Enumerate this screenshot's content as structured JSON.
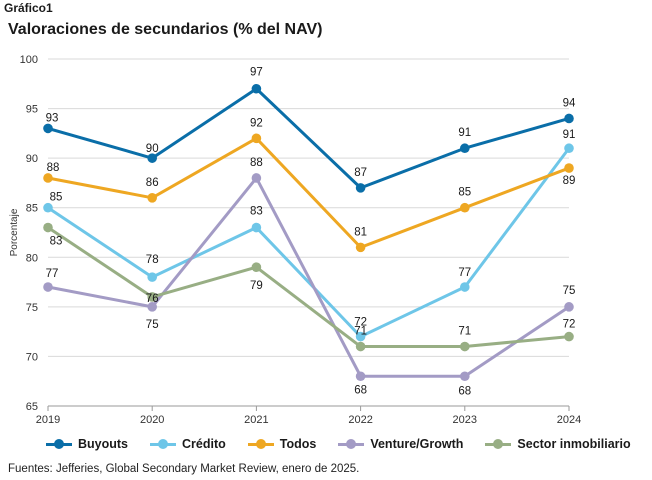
{
  "header": {
    "label": "Gráfico1",
    "title": "Valoraciones de secundarios (% del NAV)"
  },
  "source": "Fuentes: Jefferies, Global Secondary Market Review, enero de 2025.",
  "colors": {
    "buyouts": "#0a6ea8",
    "credito": "#6ec6e8",
    "todos": "#eea722",
    "venture": "#a39bc5",
    "inmobiliario": "#98ae84",
    "grid": "#d9d9d9",
    "axis": "#9a9a9a"
  },
  "chart_data": {
    "type": "line",
    "x": [
      "2019",
      "2020",
      "2021",
      "2022",
      "2023",
      "2024"
    ],
    "ylabel": "Porcentaje",
    "ylim": [
      65,
      100
    ],
    "yticks": [
      65,
      70,
      75,
      80,
      85,
      90,
      95,
      100
    ],
    "grid": true,
    "legend": "bottom",
    "series": [
      {
        "name": "Buyouts",
        "key": "buyouts",
        "values": [
          93,
          90,
          97,
          87,
          91,
          94
        ]
      },
      {
        "name": "Crédito",
        "key": "credito",
        "values": [
          85,
          78,
          83,
          72,
          77,
          91
        ]
      },
      {
        "name": "Todos",
        "key": "todos",
        "values": [
          88,
          86,
          92,
          81,
          85,
          89
        ]
      },
      {
        "name": "Venture/Growth",
        "key": "venture",
        "values": [
          77,
          75,
          88,
          68,
          68,
          75
        ]
      },
      {
        "name": "Sector inmobiliario",
        "key": "inmobiliario",
        "values": [
          83,
          76,
          79,
          71,
          71,
          72
        ]
      }
    ]
  }
}
